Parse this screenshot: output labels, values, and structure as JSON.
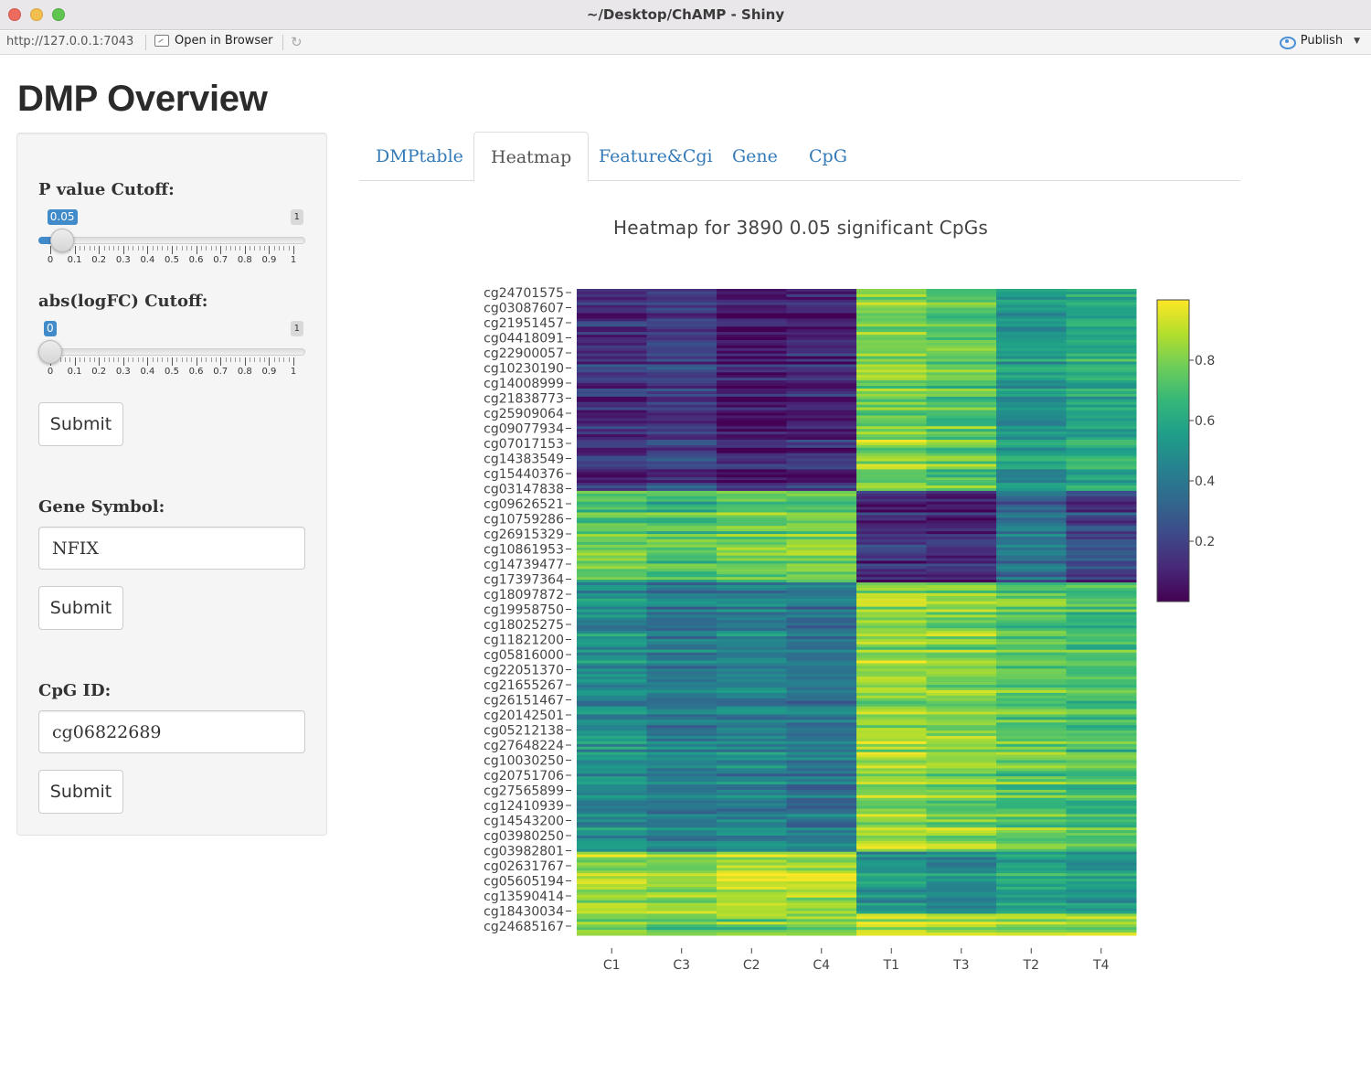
{
  "window": {
    "title": "~/Desktop/ChAMP - Shiny"
  },
  "toolbar": {
    "url": "http://127.0.0.1:7043",
    "open_browser": "Open in Browser",
    "publish": "Publish"
  },
  "page": {
    "title": "DMP Overview"
  },
  "sidebar": {
    "pvalue": {
      "label": "P value Cutoff:",
      "value": 0.05,
      "value_label": "0.05",
      "min": 0,
      "max": 1,
      "max_label": "1"
    },
    "logfc": {
      "label": "abs(logFC) Cutoff:",
      "value": 0,
      "value_label": "0",
      "min": 0,
      "max": 1,
      "max_label": "1"
    },
    "tick_labels": [
      "0",
      "0.1",
      "0.2",
      "0.3",
      "0.4",
      "0.5",
      "0.6",
      "0.7",
      "0.8",
      "0.9",
      "1"
    ],
    "submit_label": "Submit",
    "gene": {
      "label": "Gene Symbol:",
      "value": "NFIX"
    },
    "cpg": {
      "label": "CpG ID:",
      "value": "cg06822689"
    }
  },
  "tabs": [
    {
      "label": "DMPtable",
      "active": false
    },
    {
      "label": "Heatmap",
      "active": true
    },
    {
      "label": "Feature&Cgi",
      "active": false
    },
    {
      "label": "Gene",
      "active": false
    },
    {
      "label": "CpG",
      "active": false
    }
  ],
  "chart_data": {
    "type": "heatmap",
    "title": "Heatmap for 3890 0.05 significant CpGs",
    "columns": [
      "C1",
      "C3",
      "C2",
      "C4",
      "T1",
      "T3",
      "T2",
      "T4"
    ],
    "row_labels": [
      "cg24701575",
      "cg03087607",
      "cg21951457",
      "cg04418091",
      "cg22900057",
      "cg10230190",
      "cg14008999",
      "cg21838773",
      "cg25909064",
      "cg09077934",
      "cg07017153",
      "cg14383549",
      "cg15440376",
      "cg03147838",
      "cg09626521",
      "cg10759286",
      "cg26915329",
      "cg10861953",
      "cg14739477",
      "cg17397364",
      "cg18097872",
      "cg19958750",
      "cg18025275",
      "cg11821200",
      "cg05816000",
      "cg22051370",
      "cg21655267",
      "cg26151467",
      "cg20142501",
      "cg05212138",
      "cg27648224",
      "cg10030250",
      "cg20751706",
      "cg27565899",
      "cg12410939",
      "cg14543200",
      "cg03980250",
      "cg03982801",
      "cg02631767",
      "cg05605194",
      "cg13590414",
      "cg18430034",
      "cg24685167"
    ],
    "cluster_blocks": [
      {
        "rows": "cg24701575 to cg03147838",
        "values": [
          0.15,
          0.2,
          0.08,
          0.12,
          0.82,
          0.75,
          0.55,
          0.62
        ]
      },
      {
        "rows": "cg09626521 to cg14739477",
        "values": [
          0.72,
          0.68,
          0.75,
          0.78,
          0.12,
          0.1,
          0.35,
          0.2
        ]
      },
      {
        "rows": "cg17397364 to cg03980250",
        "values": [
          0.5,
          0.42,
          0.45,
          0.4,
          0.85,
          0.82,
          0.75,
          0.7
        ]
      },
      {
        "rows": "cg03982801 to cg13590414",
        "values": [
          0.88,
          0.85,
          0.9,
          0.88,
          0.55,
          0.5,
          0.6,
          0.55
        ]
      },
      {
        "rows": "cg18430034 to cg24685167",
        "values": [
          0.78,
          0.75,
          0.78,
          0.76,
          0.88,
          0.86,
          0.82,
          0.8
        ]
      }
    ],
    "colorbar": {
      "ticks": [
        0.2,
        0.4,
        0.6,
        0.8
      ],
      "tick_labels": [
        "0.2",
        "0.4",
        "0.6",
        "0.8"
      ],
      "range": [
        0,
        1
      ],
      "colorscale": "viridis"
    },
    "colors": {
      "low": "#440154",
      "mid": "#21908d",
      "high": "#fde725"
    }
  }
}
